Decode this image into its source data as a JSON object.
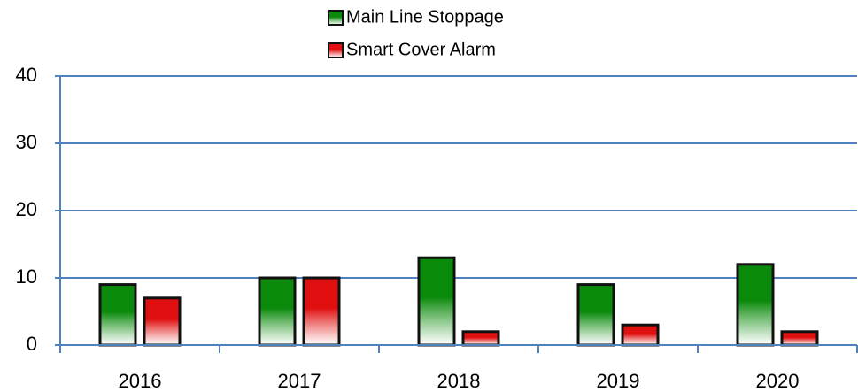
{
  "chart_data": {
    "type": "bar",
    "categories": [
      "2016",
      "2017",
      "2018",
      "2019",
      "2020"
    ],
    "series": [
      {
        "name": "Main Line Stoppage",
        "color": "#0a8a0a",
        "values": [
          9,
          10,
          13,
          9,
          12
        ]
      },
      {
        "name": "Smart Cover Alarm",
        "color": "#e01010",
        "values": [
          7,
          10,
          2,
          3,
          2
        ]
      }
    ],
    "ylim": [
      0,
      40
    ],
    "yticks": [
      0,
      10,
      20,
      30,
      40
    ],
    "grid": true,
    "legend": "top"
  }
}
